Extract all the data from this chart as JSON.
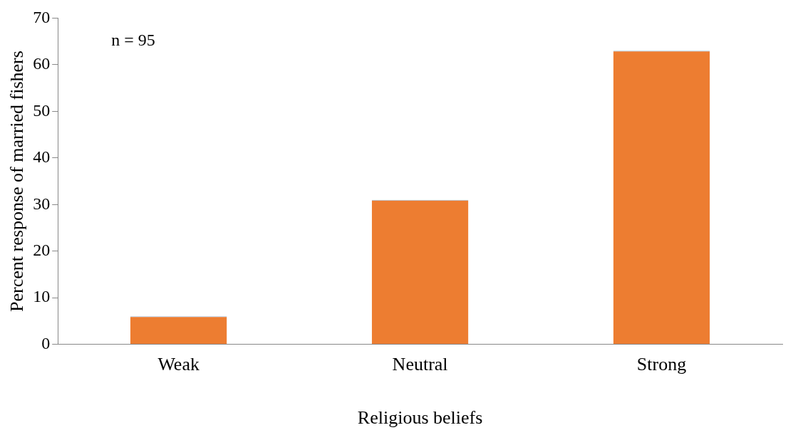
{
  "chart_data": {
    "type": "bar",
    "xlabel": "Religious beliefs",
    "ylabel": "Percent response of married fishers",
    "categories": [
      "Weak",
      "Neutral",
      "Strong"
    ],
    "values": [
      6,
      31,
      63
    ],
    "color": "#ed7d31",
    "ylim": [
      0,
      70
    ],
    "yticks": [
      0,
      10,
      20,
      30,
      40,
      50,
      60,
      70
    ],
    "grid": false,
    "annotations": [
      "n = 95"
    ]
  }
}
